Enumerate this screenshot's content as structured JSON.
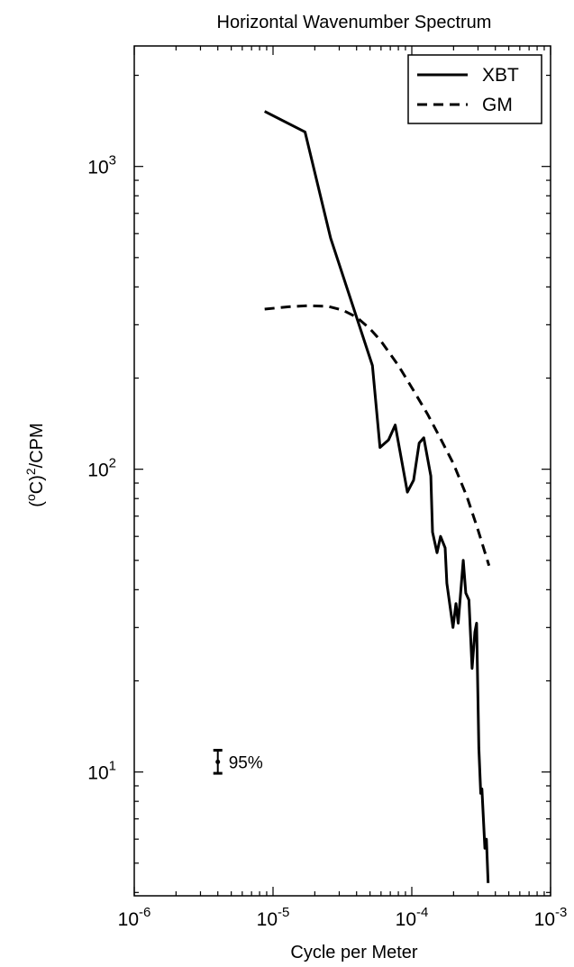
{
  "chart_data": {
    "type": "line",
    "title": "Horizontal Wavenumber Spectrum",
    "xlabel": "Cycle per Meter",
    "ylabel_parts": {
      "open": "(",
      "sup_o": "o",
      "mid": "C)",
      "sup_2": "2",
      "tail": "/CPM"
    },
    "x_scale": "log",
    "y_scale": "log",
    "xlim": [
      1e-06,
      0.001
    ],
    "ylim": [
      3.9,
      2500
    ],
    "grid": false,
    "legend_position": "top-right",
    "x_ticks": [
      {
        "value": 1e-06,
        "base": "10",
        "exp": "-6"
      },
      {
        "value": 1e-05,
        "base": "10",
        "exp": "-5"
      },
      {
        "value": 0.0001,
        "base": "10",
        "exp": "-4"
      },
      {
        "value": 0.001,
        "base": "10",
        "exp": "-3"
      }
    ],
    "y_ticks": [
      {
        "value": 10,
        "base": "10",
        "exp": "1"
      },
      {
        "value": 100,
        "base": "10",
        "exp": "2"
      },
      {
        "value": 1000,
        "base": "10",
        "exp": "3"
      }
    ],
    "series": [
      {
        "name": "XBT",
        "style": "solid",
        "color": "#000000",
        "points": [
          [
            8.7e-06,
            1520
          ],
          [
            1.7e-05,
            1300
          ],
          [
            2.6e-05,
            580
          ],
          [
            5.2e-05,
            220
          ],
          [
            5.9e-05,
            118
          ],
          [
            6.8e-05,
            125
          ],
          [
            7.6e-05,
            140
          ],
          [
            9.3e-05,
            84
          ],
          [
            0.000103,
            92
          ],
          [
            0.000113,
            122
          ],
          [
            0.000122,
            127
          ],
          [
            0.000137,
            95
          ],
          [
            0.000141,
            62
          ],
          [
            0.000152,
            53
          ],
          [
            0.000161,
            60
          ],
          [
            0.000174,
            55
          ],
          [
            0.000179,
            42
          ],
          [
            0.000198,
            30
          ],
          [
            0.000208,
            36
          ],
          [
            0.000216,
            31
          ],
          [
            0.000235,
            50
          ],
          [
            0.000245,
            39
          ],
          [
            0.000258,
            37
          ],
          [
            0.000272,
            22
          ],
          [
            0.000285,
            29
          ],
          [
            0.000293,
            31
          ],
          [
            0.000304,
            12
          ],
          [
            0.000314,
            8.5
          ],
          [
            0.00032,
            8.8
          ],
          [
            0.000336,
            5.6
          ],
          [
            0.000345,
            6.0
          ],
          [
            0.000355,
            4.3
          ]
        ]
      },
      {
        "name": "GM",
        "style": "dashed",
        "color": "#000000",
        "points": [
          [
            8.7e-06,
            338
          ],
          [
            1.3e-05,
            344
          ],
          [
            1.8e-05,
            347
          ],
          [
            2.5e-05,
            345
          ],
          [
            3.2e-05,
            335
          ],
          [
            4e-05,
            318
          ],
          [
            5e-05,
            291
          ],
          [
            6e-05,
            265
          ],
          [
            8e-05,
            220
          ],
          [
            0.0001,
            186
          ],
          [
            0.00013,
            152
          ],
          [
            0.00016,
            127
          ],
          [
            0.0002,
            104
          ],
          [
            0.00025,
            81
          ],
          [
            0.0003,
            63
          ],
          [
            0.00036,
            48
          ]
        ]
      }
    ],
    "annotations": [
      {
        "text": "95%",
        "x": 4e-06,
        "y": 10.8,
        "error_low": 9.9,
        "error_high": 11.8
      }
    ]
  }
}
